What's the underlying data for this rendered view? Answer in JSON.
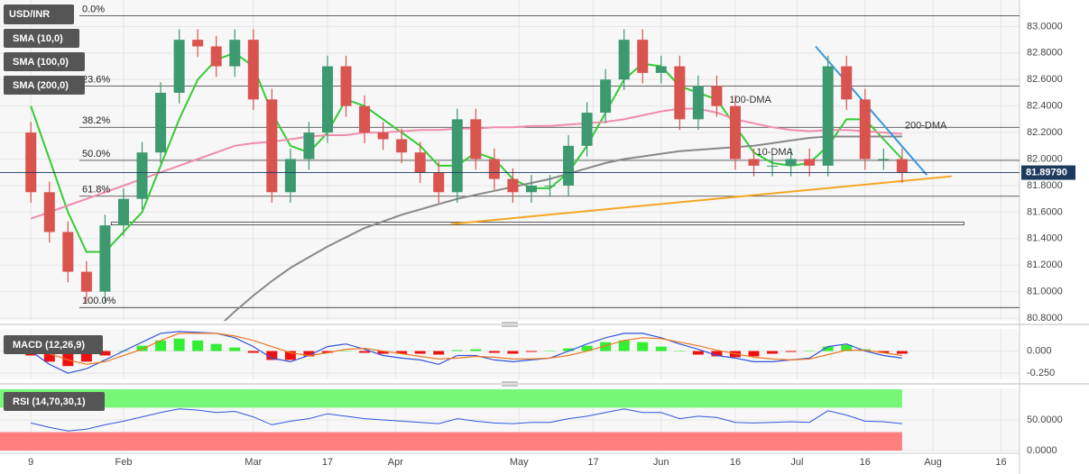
{
  "chart_data": [
    {
      "type": "candlestick",
      "title": "USD/INR",
      "x": [
        0,
        3,
        6,
        9,
        12,
        15,
        18,
        21,
        24,
        27,
        30,
        33,
        36,
        39,
        42,
        45,
        48,
        51,
        54,
        57,
        60,
        63,
        66,
        69,
        72,
        75,
        78,
        81,
        84,
        87,
        90,
        93,
        96,
        99,
        102,
        105,
        108,
        111,
        114,
        117,
        120,
        123,
        126,
        129,
        132,
        135,
        138,
        141
      ],
      "open": [
        82.2,
        81.75,
        81.45,
        81.15,
        81.0,
        81.5,
        81.7,
        82.05,
        82.5,
        82.9,
        82.85,
        82.7,
        82.9,
        82.45,
        81.75,
        82.0,
        82.2,
        82.7,
        82.4,
        82.2,
        82.15,
        82.05,
        81.9,
        81.75,
        82.3,
        82.0,
        81.85,
        81.75,
        81.8,
        81.8,
        82.1,
        82.35,
        82.6,
        82.9,
        82.65,
        82.7,
        82.3,
        82.55,
        82.4,
        82.0,
        81.95,
        81.95,
        82.0,
        81.95,
        82.7,
        82.45,
        82.0,
        82.0
      ],
      "high": [
        82.28,
        81.83,
        81.53,
        81.23,
        81.58,
        81.78,
        82.13,
        82.58,
        82.98,
        82.98,
        82.93,
        82.98,
        82.98,
        82.53,
        82.08,
        82.28,
        82.78,
        82.78,
        82.48,
        82.28,
        82.23,
        82.13,
        81.98,
        82.38,
        82.38,
        82.08,
        81.93,
        81.88,
        81.88,
        82.18,
        82.43,
        82.68,
        82.98,
        82.98,
        82.78,
        82.78,
        82.63,
        82.63,
        82.48,
        82.08,
        82.03,
        82.08,
        82.08,
        82.78,
        82.78,
        82.53,
        82.08,
        82.08
      ],
      "low": [
        81.67,
        81.37,
        81.07,
        80.92,
        80.92,
        81.42,
        81.62,
        81.97,
        82.42,
        82.77,
        82.62,
        82.62,
        82.37,
        81.67,
        81.67,
        81.92,
        82.12,
        82.32,
        82.12,
        82.07,
        81.97,
        81.82,
        81.67,
        81.67,
        81.92,
        81.77,
        81.67,
        81.67,
        81.72,
        81.72,
        82.02,
        82.27,
        82.52,
        82.57,
        82.57,
        82.22,
        82.22,
        82.32,
        81.92,
        81.87,
        81.87,
        81.87,
        81.87,
        81.87,
        82.37,
        81.92,
        81.92,
        81.82
      ],
      "close": [
        81.75,
        81.45,
        81.15,
        81.0,
        81.5,
        81.7,
        82.05,
        82.5,
        82.9,
        82.85,
        82.7,
        82.9,
        82.45,
        81.75,
        82.0,
        82.2,
        82.7,
        82.4,
        82.2,
        82.15,
        82.05,
        81.9,
        81.75,
        82.3,
        82.0,
        81.85,
        81.75,
        81.8,
        81.8,
        82.1,
        82.35,
        82.6,
        82.9,
        82.65,
        82.7,
        82.3,
        82.55,
        82.4,
        82.0,
        81.95,
        81.95,
        82.0,
        81.95,
        82.7,
        82.45,
        82.0,
        82.0,
        81.9
      ],
      "up_color": "#3d9970",
      "down_color": "#d9534f",
      "xlim": [
        -5,
        160
      ],
      "xticks": [
        {
          "value": 0,
          "label": "9"
        },
        {
          "value": 15,
          "label": "Feb"
        },
        {
          "value": 36,
          "label": "Mar"
        },
        {
          "value": 48,
          "label": "17"
        },
        {
          "value": 59,
          "label": "Apr"
        },
        {
          "value": 79,
          "label": "May"
        },
        {
          "value": 91,
          "label": "17"
        },
        {
          "value": 102,
          "label": "Jun"
        },
        {
          "value": 114,
          "label": "16"
        },
        {
          "value": 124,
          "label": "Jul"
        },
        {
          "value": 135,
          "label": "16"
        },
        {
          "value": 146,
          "label": "Aug"
        },
        {
          "value": 157,
          "label": "16"
        }
      ],
      "ylim": [
        80.78,
        83.2
      ],
      "yticks": [
        {
          "value": 83.0,
          "label": "83.0000"
        },
        {
          "value": 82.8,
          "label": "82.8000"
        },
        {
          "value": 82.6,
          "label": "82.6000"
        },
        {
          "value": 82.4,
          "label": "82.4000"
        },
        {
          "value": 82.2,
          "label": "82.2000"
        },
        {
          "value": 82.0,
          "label": "82.0000"
        },
        {
          "value": 81.8,
          "label": "81.8000"
        },
        {
          "value": 81.6,
          "label": "81.6000"
        },
        {
          "value": 81.4,
          "label": "81.4000"
        },
        {
          "value": 81.2,
          "label": "81.2000"
        },
        {
          "value": 81.0,
          "label": "81.0000"
        },
        {
          "value": 80.8,
          "label": "80.8000"
        }
      ],
      "series": [
        {
          "name": "SMA (10,0)",
          "label": "10-DMA",
          "color": "#33cc33",
          "values": [
            82.4,
            82.0,
            81.6,
            81.3,
            81.3,
            81.45,
            81.6,
            81.95,
            82.3,
            82.6,
            82.75,
            82.8,
            82.7,
            82.35,
            82.1,
            82.05,
            82.2,
            82.45,
            82.4,
            82.3,
            82.2,
            82.1,
            81.95,
            81.95,
            82.05,
            82.0,
            81.85,
            81.78,
            81.78,
            81.9,
            82.1,
            82.35,
            82.6,
            82.72,
            82.7,
            82.55,
            82.5,
            82.45,
            82.25,
            82.05,
            81.97,
            81.95,
            81.97,
            82.1,
            82.3,
            82.3,
            82.15,
            82.0
          ]
        },
        {
          "name": "SMA (100,0)",
          "label": "100-DMA",
          "color": "#f08cac",
          "values": [
            81.55,
            81.6,
            81.65,
            81.7,
            81.75,
            81.8,
            81.85,
            81.9,
            81.95,
            82.0,
            82.05,
            82.1,
            82.12,
            82.13,
            82.15,
            82.17,
            82.18,
            82.18,
            82.2,
            82.2,
            82.21,
            82.22,
            82.22,
            82.23,
            82.23,
            82.24,
            82.24,
            82.25,
            82.25,
            82.26,
            82.27,
            82.28,
            82.3,
            82.33,
            82.36,
            82.38,
            82.38,
            82.35,
            82.3,
            82.27,
            82.24,
            82.22,
            82.21,
            82.22,
            82.22,
            82.21,
            82.2,
            82.19
          ]
        },
        {
          "name": "SMA (200,0)",
          "label": "200-DMA",
          "color": "#888888",
          "values": [
            null,
            null,
            null,
            null,
            null,
            null,
            null,
            null,
            null,
            null,
            80.72,
            80.85,
            80.97,
            81.08,
            81.18,
            81.26,
            81.34,
            81.41,
            81.48,
            81.53,
            81.58,
            81.62,
            81.66,
            81.7,
            81.73,
            81.76,
            81.79,
            81.82,
            81.85,
            81.89,
            81.93,
            81.97,
            82.0,
            82.02,
            82.04,
            82.06,
            82.07,
            82.08,
            82.09,
            82.1,
            82.12,
            82.14,
            82.16,
            82.17,
            82.17,
            82.17,
            82.17,
            82.17
          ]
        }
      ],
      "fib_levels": [
        {
          "label": "0.0%",
          "value": 83.08
        },
        {
          "label": "23.6%",
          "value": 82.55
        },
        {
          "label": "38.2%",
          "value": 82.24
        },
        {
          "label": "50.0%",
          "value": 81.99
        },
        {
          "label": "61.8%",
          "value": 81.72
        },
        {
          "label": "100.0%",
          "value": 80.88
        }
      ],
      "support": {
        "value": 81.51,
        "x": [
          13,
          151
        ]
      },
      "trendlines": [
        {
          "color": "#f5a623",
          "x": [
            68,
            149
          ],
          "y": [
            81.51,
            81.87
          ]
        },
        {
          "color": "#3399dd",
          "x": [
            127,
            145
          ],
          "y": [
            82.85,
            81.88
          ]
        }
      ],
      "last_price": {
        "value": 81.8979,
        "label": "81.89790"
      }
    },
    {
      "type": "macd",
      "title": "MACD (12,26,9)",
      "histogram": [
        -0.05,
        -0.12,
        -0.17,
        -0.12,
        -0.05,
        0.0,
        0.06,
        0.12,
        0.14,
        0.12,
        0.08,
        0.04,
        -0.02,
        -0.1,
        -0.1,
        -0.06,
        -0.02,
        0.0,
        -0.02,
        -0.03,
        -0.03,
        -0.03,
        -0.04,
        0.01,
        0.02,
        -0.02,
        -0.03,
        -0.01,
        0.0,
        0.03,
        0.06,
        0.1,
        0.12,
        0.1,
        0.05,
        0.0,
        -0.04,
        -0.06,
        -0.07,
        -0.06,
        -0.03,
        -0.01,
        0.0,
        0.05,
        0.07,
        0.02,
        -0.02,
        -0.03
      ],
      "pos_color": "#33ee33",
      "neg_color": "#ee1111",
      "series": [
        {
          "color": "#3355dd",
          "values": [
            0.0,
            -0.15,
            -0.25,
            -0.2,
            -0.1,
            0.0,
            0.1,
            0.2,
            0.22,
            0.21,
            0.2,
            0.15,
            0.05,
            -0.08,
            -0.12,
            -0.05,
            0.05,
            0.08,
            0.02,
            -0.05,
            -0.08,
            -0.1,
            -0.15,
            -0.05,
            -0.05,
            -0.1,
            -0.12,
            -0.1,
            -0.08,
            0.0,
            0.08,
            0.15,
            0.2,
            0.2,
            0.15,
            0.08,
            0.02,
            -0.05,
            -0.08,
            -0.12,
            -0.12,
            -0.1,
            -0.08,
            0.05,
            0.08,
            0.0,
            -0.05,
            -0.08
          ]
        },
        {
          "color": "#ee7722",
          "values": [
            0.05,
            -0.03,
            -0.1,
            -0.15,
            -0.12,
            -0.05,
            0.02,
            0.12,
            0.2,
            0.2,
            0.2,
            0.17,
            0.12,
            0.05,
            -0.02,
            -0.05,
            -0.02,
            0.02,
            0.03,
            0.0,
            -0.03,
            -0.06,
            -0.09,
            -0.08,
            -0.06,
            -0.07,
            -0.09,
            -0.09,
            -0.08,
            -0.05,
            0.0,
            0.06,
            0.12,
            0.15,
            0.14,
            0.1,
            0.06,
            0.01,
            -0.03,
            -0.07,
            -0.09,
            -0.1,
            -0.09,
            -0.04,
            0.01,
            0.01,
            -0.02,
            -0.05
          ]
        }
      ],
      "ylim": [
        -0.32,
        0.25
      ],
      "yticks": [
        {
          "value": 0,
          "label": "0.000"
        },
        {
          "value": -0.25,
          "label": "-0.250"
        }
      ]
    },
    {
      "type": "rsi",
      "title": "RSI (14,70,30,1)",
      "color": "#3355dd",
      "values": [
        45,
        38,
        32,
        35,
        42,
        48,
        55,
        62,
        68,
        66,
        62,
        64,
        55,
        42,
        48,
        52,
        60,
        56,
        52,
        50,
        48,
        46,
        44,
        52,
        48,
        45,
        44,
        46,
        46,
        52,
        56,
        62,
        68,
        62,
        62,
        52,
        56,
        54,
        46,
        45,
        46,
        47,
        46,
        65,
        58,
        48,
        47,
        44
      ],
      "overbought": 70,
      "oversold": 30,
      "overbought_color": "#77f777",
      "oversold_color": "#ff7f7f",
      "ylim": [
        0,
        100
      ],
      "yticks": [
        {
          "value": 50,
          "label": "50.0000"
        },
        {
          "value": 0,
          "label": "0.0000"
        }
      ]
    }
  ]
}
